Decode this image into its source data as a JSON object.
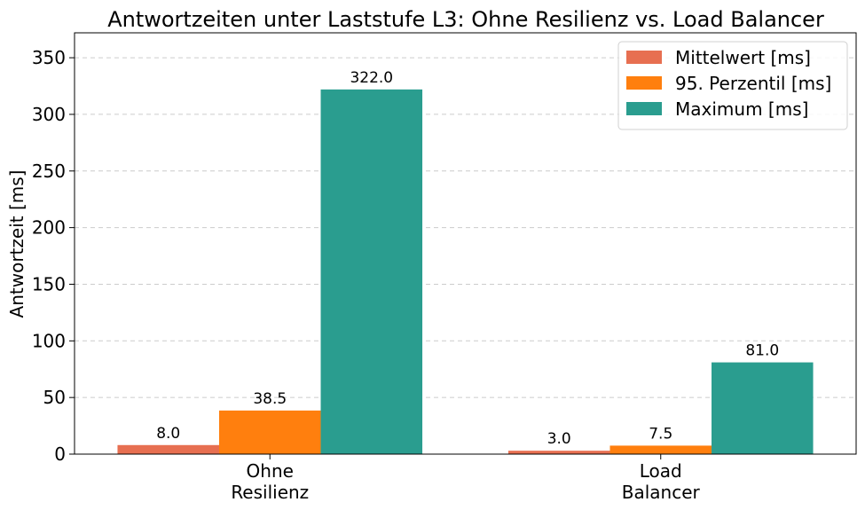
{
  "chart_data": {
    "type": "bar",
    "title": "Antwortzeiten unter Laststufe L3: Ohne Resilienz vs. Load Balancer",
    "xlabel": "",
    "ylabel": "Antwortzeit [ms]",
    "categories": [
      [
        "Ohne",
        "Resilienz"
      ],
      [
        "Load",
        "Balancer"
      ]
    ],
    "ylim": [
      0,
      372
    ],
    "yticks": [
      0,
      50,
      100,
      150,
      200,
      250,
      300,
      350
    ],
    "grid": true,
    "legend_position": "top-right",
    "series": [
      {
        "name": "Mittelwert [ms]",
        "color": "#E76F51",
        "values": [
          8.0,
          3.0
        ],
        "labels": [
          "8.0",
          "3.0"
        ]
      },
      {
        "name": "95. Perzentil [ms]",
        "color": "#FF7F0E",
        "values": [
          38.5,
          7.5
        ],
        "labels": [
          "38.5",
          "7.5"
        ]
      },
      {
        "name": "Maximum [ms]",
        "color": "#2A9D8F",
        "values": [
          322.0,
          81.0
        ],
        "labels": [
          "322.0",
          "81.0"
        ]
      }
    ]
  }
}
